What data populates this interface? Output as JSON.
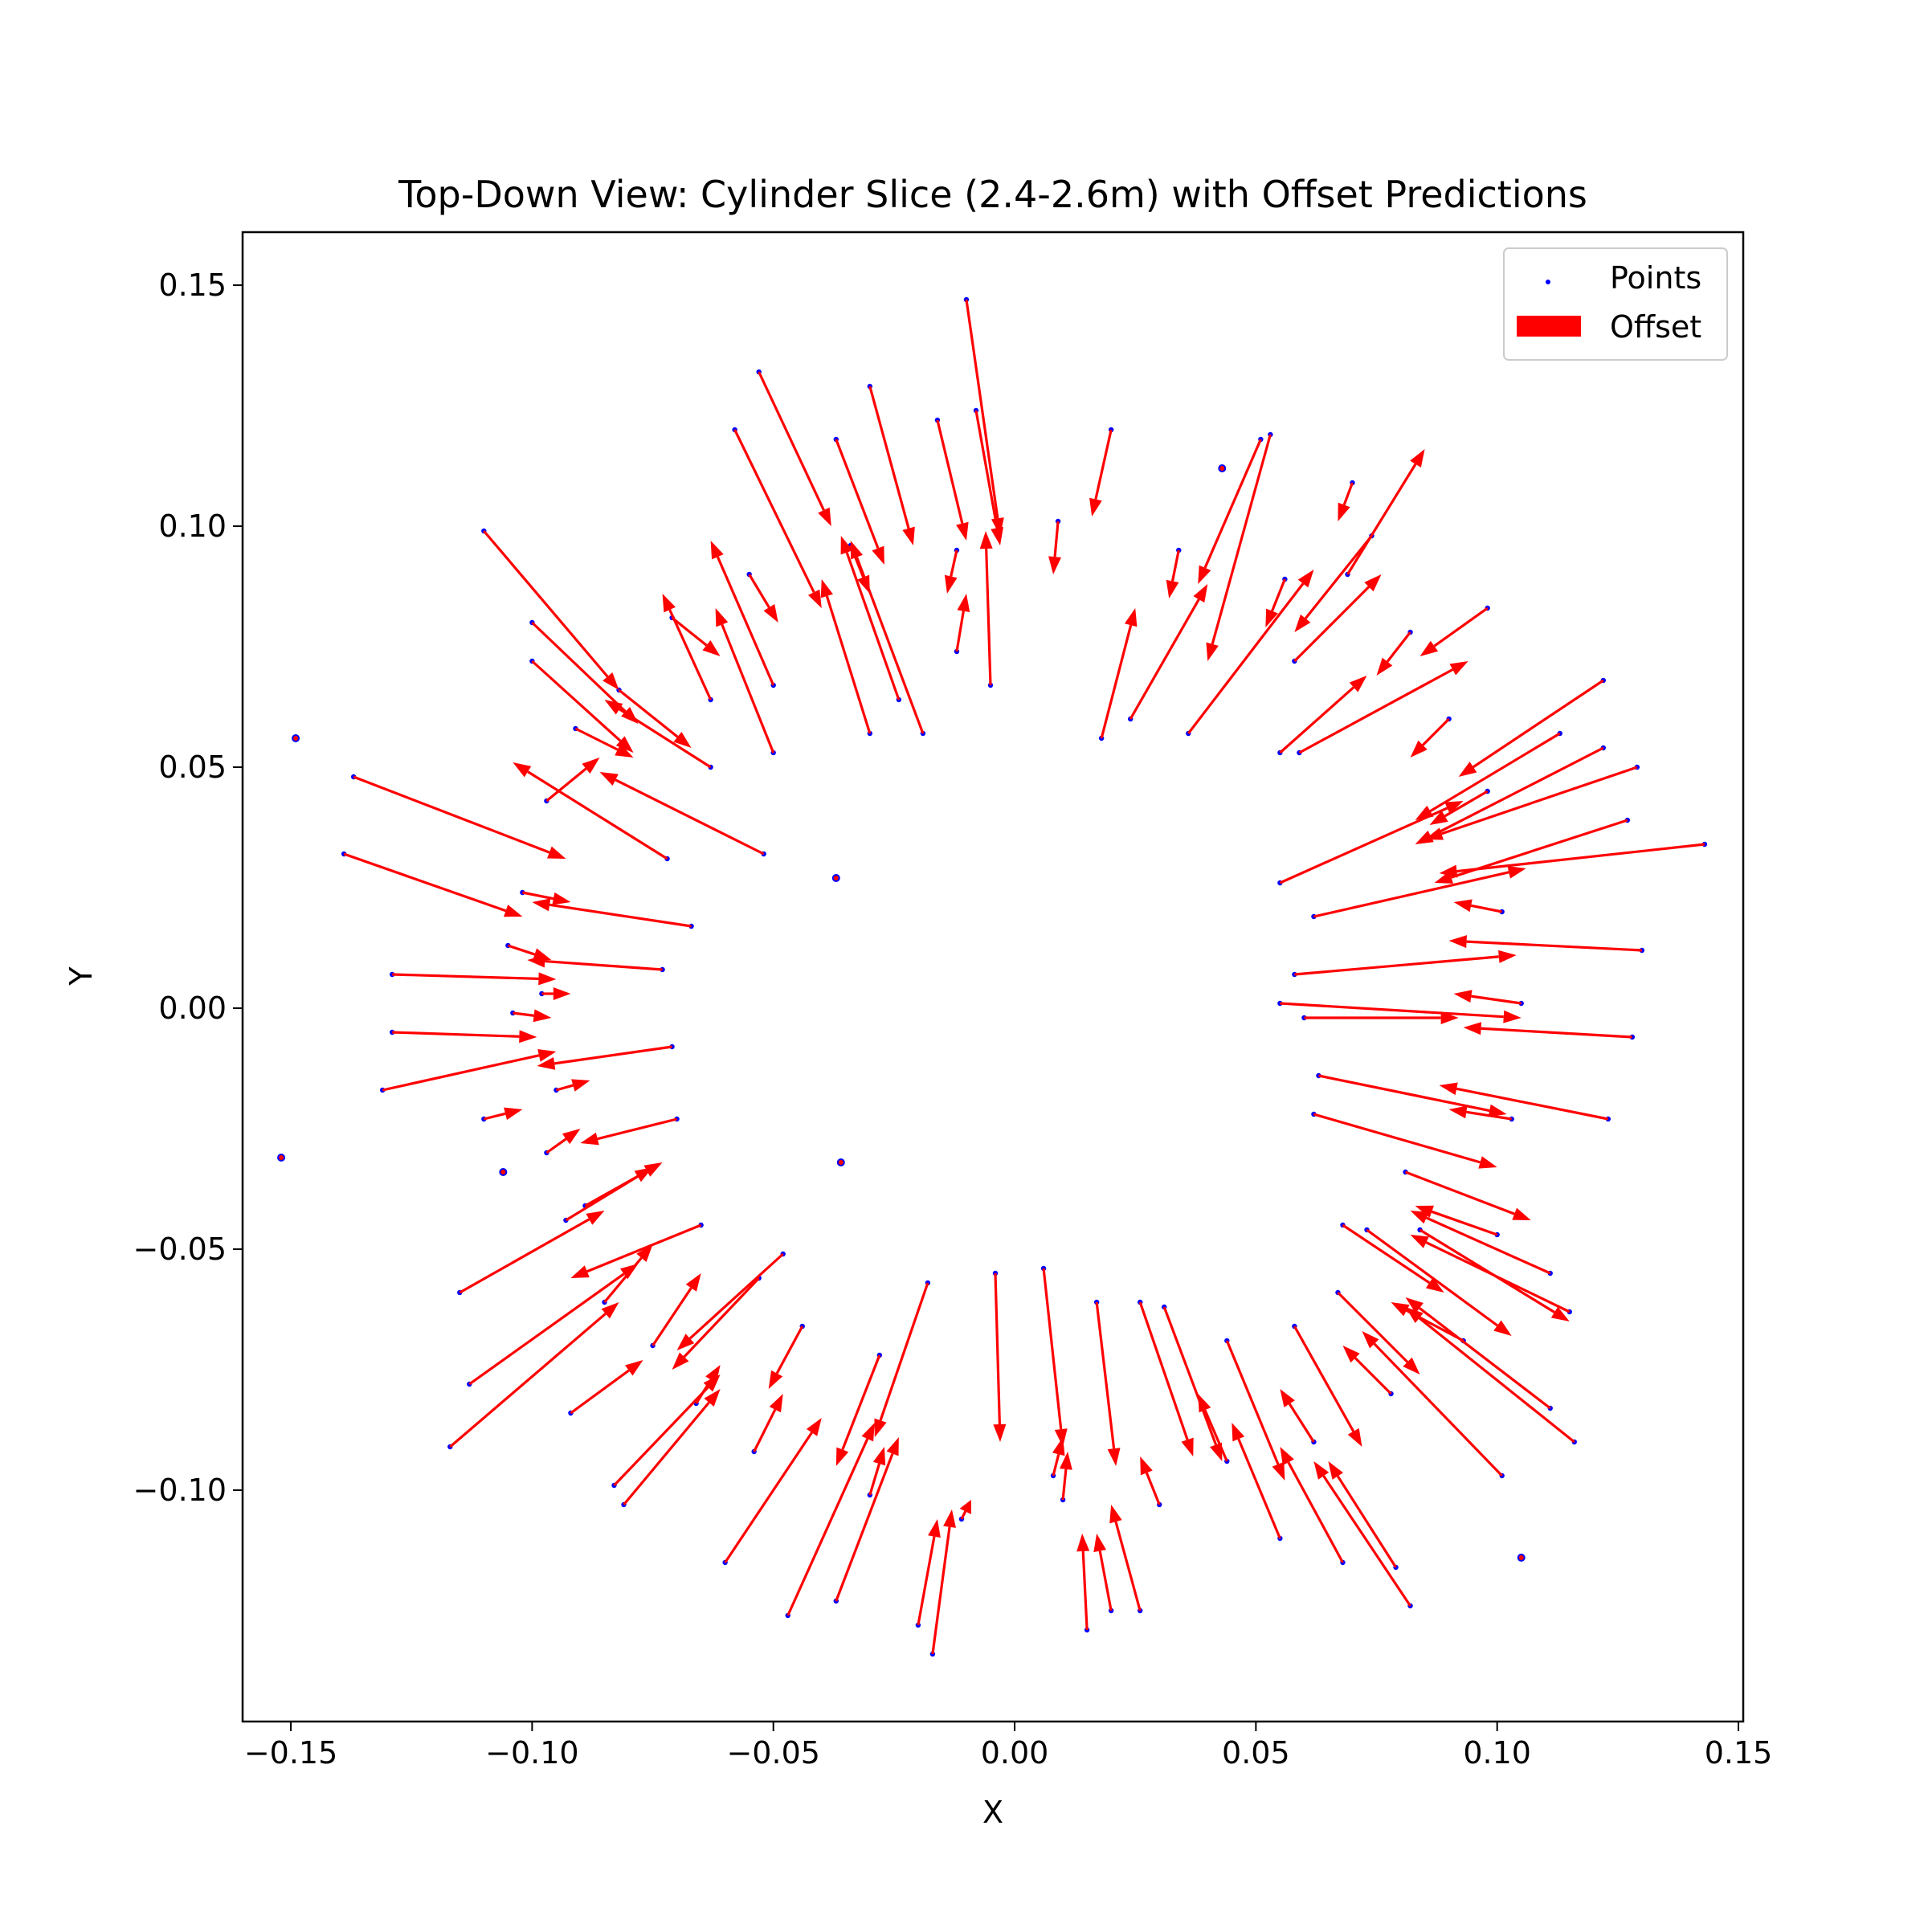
{
  "chart_data": {
    "type": "scatter",
    "title": "Top-Down View: Cylinder Slice (2.4-2.6m) with Offset Predictions",
    "xlabel": "X",
    "ylabel": "Y",
    "xlim": [
      -0.16,
      0.151
    ],
    "ylim": [
      -0.148,
      0.161
    ],
    "x_ticks": [
      -0.15,
      -0.1,
      -0.05,
      0.0,
      0.05,
      0.1,
      0.15
    ],
    "x_tick_labels": [
      "−0.15",
      "−0.10",
      "−0.05",
      "0.00",
      "0.05",
      "0.10",
      "0.15"
    ],
    "y_ticks": [
      0.15,
      0.1,
      0.05,
      0.0,
      -0.05,
      -0.1
    ],
    "y_tick_labels": [
      "0.15",
      "0.10",
      "0.05",
      "0.00",
      "−0.05",
      "−0.10"
    ],
    "grid": false,
    "legend": {
      "position": "upper right",
      "entries": [
        {
          "label": "Points",
          "marker": "dot",
          "color": "#0000ff"
        },
        {
          "label": "Offset",
          "marker": "patch",
          "color": "#ff0000"
        }
      ]
    },
    "colors": {
      "points": "#0000ff",
      "offset": "#ff0000"
    },
    "series": [
      {
        "name": "Offset",
        "kind": "quiver",
        "columns": [
          "x",
          "y",
          "dx",
          "dy"
        ],
        "values": [
          [
            -0.01,
            0.147,
            0.007,
            -0.049
          ],
          [
            -0.008,
            0.124,
            0.005,
            -0.028
          ],
          [
            -0.053,
            0.132,
            0.015,
            -0.032
          ],
          [
            -0.058,
            0.12,
            0.018,
            -0.037
          ],
          [
            -0.037,
            0.118,
            0.01,
            -0.026
          ],
          [
            -0.03,
            0.129,
            0.009,
            -0.033
          ],
          [
            -0.016,
            0.122,
            0.006,
            -0.025
          ],
          [
            -0.11,
            0.099,
            0.028,
            -0.033
          ],
          [
            -0.1,
            0.08,
            0.022,
            -0.021
          ],
          [
            -0.1,
            0.072,
            0.021,
            -0.019
          ],
          [
            -0.137,
            0.048,
            0.044,
            -0.017
          ],
          [
            -0.139,
            0.032,
            0.037,
            -0.013
          ],
          [
            -0.129,
            0.007,
            0.034,
            -0.001
          ],
          [
            -0.129,
            -0.005,
            0.03,
            -0.001
          ],
          [
            -0.131,
            -0.017,
            0.036,
            0.008
          ],
          [
            -0.11,
            -0.023,
            0.008,
            0.002
          ],
          [
            -0.115,
            -0.059,
            0.03,
            0.017
          ],
          [
            -0.113,
            -0.078,
            0.035,
            0.025
          ],
          [
            -0.117,
            -0.091,
            0.035,
            0.03
          ],
          [
            -0.092,
            -0.084,
            0.015,
            0.011
          ],
          [
            -0.083,
            -0.099,
            0.022,
            0.023
          ],
          [
            -0.081,
            -0.103,
            0.02,
            0.024
          ],
          [
            -0.06,
            -0.115,
            0.02,
            0.03
          ],
          [
            -0.047,
            -0.126,
            0.018,
            0.04
          ],
          [
            -0.037,
            -0.123,
            0.013,
            0.034
          ],
          [
            -0.017,
            -0.134,
            0.004,
            0.03
          ],
          [
            -0.02,
            -0.128,
            0.004,
            0.022
          ],
          [
            0.015,
            -0.129,
            -0.001,
            0.02
          ],
          [
            0.02,
            -0.125,
            -0.003,
            0.016
          ],
          [
            0.026,
            -0.125,
            -0.006,
            0.022
          ],
          [
            0.055,
            -0.11,
            -0.01,
            0.024
          ],
          [
            0.068,
            -0.115,
            -0.013,
            0.024
          ],
          [
            0.079,
            -0.116,
            -0.014,
            0.022
          ],
          [
            0.082,
            -0.124,
            -0.02,
            0.03
          ],
          [
            0.101,
            -0.097,
            -0.029,
            0.03
          ],
          [
            0.111,
            -0.083,
            -0.03,
            0.023
          ],
          [
            0.116,
            -0.09,
            -0.035,
            0.028
          ],
          [
            0.115,
            -0.063,
            -0.033,
            0.016
          ],
          [
            0.111,
            -0.055,
            -0.029,
            0.013
          ],
          [
            0.123,
            -0.023,
            -0.035,
            0.007
          ],
          [
            0.128,
            -0.006,
            -0.035,
            0.002
          ],
          [
            0.13,
            0.012,
            -0.04,
            0.002
          ],
          [
            0.143,
            0.034,
            -0.055,
            -0.006
          ],
          [
            0.129,
            0.05,
            -0.044,
            -0.015
          ],
          [
            0.127,
            0.039,
            -0.04,
            -0.013
          ],
          [
            0.122,
            0.054,
            -0.039,
            -0.02
          ],
          [
            0.122,
            0.068,
            -0.03,
            -0.02
          ],
          [
            0.113,
            0.057,
            -0.03,
            -0.018
          ],
          [
            0.098,
            0.083,
            -0.014,
            -0.01
          ],
          [
            0.074,
            0.098,
            -0.016,
            -0.02
          ],
          [
            0.07,
            0.109,
            -0.003,
            -0.008
          ],
          [
            0.053,
            0.119,
            -0.013,
            -0.047
          ],
          [
            0.051,
            0.118,
            -0.013,
            -0.03
          ],
          [
            0.02,
            0.12,
            -0.004,
            -0.018
          ],
          [
            0.018,
            0.056,
            0.007,
            0.027
          ],
          [
            -0.005,
            0.067,
            -0.001,
            0.032
          ],
          [
            -0.019,
            0.057,
            -0.015,
            0.04
          ],
          [
            -0.024,
            0.064,
            -0.012,
            0.034
          ],
          [
            -0.03,
            0.057,
            -0.01,
            0.032
          ],
          [
            -0.05,
            0.053,
            -0.012,
            0.03
          ],
          [
            -0.05,
            0.067,
            -0.013,
            0.03
          ],
          [
            -0.063,
            0.064,
            -0.01,
            0.022
          ],
          [
            -0.063,
            0.05,
            -0.022,
            0.014
          ],
          [
            -0.072,
            0.031,
            -0.032,
            0.02
          ],
          [
            -0.052,
            0.032,
            -0.034,
            0.017
          ],
          [
            -0.067,
            0.017,
            -0.033,
            0.005
          ],
          [
            -0.073,
            0.008,
            -0.028,
            0.002
          ],
          [
            -0.071,
            -0.008,
            -0.028,
            -0.004
          ],
          [
            -0.07,
            -0.023,
            -0.02,
            -0.005
          ],
          [
            -0.065,
            -0.045,
            -0.027,
            -0.011
          ],
          [
            -0.048,
            -0.051,
            -0.022,
            -0.02
          ],
          [
            -0.053,
            -0.056,
            -0.018,
            -0.019
          ],
          [
            -0.044,
            -0.066,
            -0.007,
            -0.013
          ],
          [
            -0.028,
            -0.072,
            -0.009,
            -0.023
          ],
          [
            -0.018,
            -0.057,
            -0.011,
            -0.032
          ],
          [
            -0.004,
            -0.055,
            0.001,
            -0.035
          ],
          [
            0.006,
            -0.054,
            0.004,
            -0.037
          ],
          [
            0.017,
            -0.061,
            0.004,
            -0.034
          ],
          [
            0.026,
            -0.061,
            0.011,
            -0.032
          ],
          [
            0.031,
            -0.062,
            0.012,
            -0.032
          ],
          [
            0.044,
            -0.069,
            0.012,
            -0.029
          ],
          [
            0.058,
            -0.066,
            0.014,
            -0.025
          ],
          [
            0.067,
            -0.059,
            0.017,
            -0.017
          ],
          [
            0.068,
            -0.045,
            0.021,
            -0.014
          ],
          [
            0.073,
            -0.046,
            0.03,
            -0.022
          ],
          [
            0.084,
            -0.046,
            0.031,
            -0.019
          ],
          [
            0.081,
            -0.034,
            0.026,
            -0.01
          ],
          [
            0.062,
            -0.022,
            0.038,
            -0.011
          ],
          [
            0.063,
            -0.014,
            0.039,
            -0.008
          ],
          [
            0.06,
            -0.002,
            0.032,
            0.0
          ],
          [
            0.055,
            0.001,
            0.05,
            -0.003
          ],
          [
            0.058,
            0.007,
            0.046,
            0.004
          ],
          [
            0.062,
            0.019,
            0.044,
            0.01
          ],
          [
            0.055,
            0.026,
            0.038,
            0.017
          ],
          [
            0.059,
            0.053,
            0.035,
            0.019
          ],
          [
            0.055,
            0.053,
            0.018,
            0.016
          ],
          [
            0.069,
            0.09,
            0.016,
            0.026
          ],
          [
            0.058,
            0.072,
            0.018,
            0.018
          ],
          [
            0.036,
            0.057,
            0.026,
            0.034
          ],
          [
            0.024,
            0.06,
            0.016,
            0.028
          ],
          [
            -0.082,
            0.066,
            0.015,
            -0.012
          ],
          [
            -0.097,
            0.043,
            0.011,
            0.009
          ],
          [
            -0.102,
            0.024,
            0.01,
            -0.002
          ],
          [
            -0.105,
            0.013,
            0.009,
            -0.003
          ],
          [
            -0.104,
            -0.001,
            0.008,
            -0.001
          ],
          [
            -0.097,
            -0.03,
            0.007,
            0.005
          ],
          [
            -0.093,
            -0.044,
            0.018,
            0.011
          ],
          [
            -0.089,
            -0.041,
            0.016,
            0.009
          ],
          [
            -0.085,
            -0.061,
            0.01,
            0.012
          ],
          [
            -0.075,
            -0.07,
            0.01,
            0.015
          ],
          [
            -0.066,
            -0.082,
            0.005,
            0.008
          ],
          [
            -0.054,
            -0.092,
            0.006,
            0.012
          ],
          [
            -0.03,
            -0.101,
            0.003,
            0.01
          ],
          [
            -0.011,
            -0.106,
            0.002,
            0.004
          ],
          [
            0.008,
            -0.097,
            0.002,
            0.008
          ],
          [
            0.01,
            -0.102,
            0.001,
            0.01
          ],
          [
            0.03,
            -0.103,
            -0.004,
            0.01
          ],
          [
            0.044,
            -0.094,
            -0.006,
            0.014
          ],
          [
            0.062,
            -0.09,
            -0.007,
            0.011
          ],
          [
            0.078,
            -0.08,
            -0.01,
            0.01
          ],
          [
            0.093,
            -0.069,
            -0.015,
            0.008
          ],
          [
            0.1,
            -0.047,
            -0.017,
            0.006
          ],
          [
            0.103,
            -0.023,
            -0.013,
            0.002
          ],
          [
            0.105,
            0.001,
            -0.014,
            0.002
          ],
          [
            0.101,
            0.02,
            -0.01,
            0.002
          ],
          [
            0.098,
            0.045,
            -0.012,
            -0.007
          ],
          [
            0.09,
            0.06,
            -0.008,
            -0.008
          ],
          [
            0.082,
            0.078,
            -0.007,
            -0.009
          ],
          [
            0.056,
            0.089,
            -0.004,
            -0.01
          ],
          [
            0.034,
            0.095,
            -0.002,
            -0.01
          ],
          [
            0.009,
            0.101,
            -0.001,
            -0.011
          ],
          [
            -0.012,
            0.095,
            -0.002,
            -0.009
          ],
          [
            -0.034,
            0.096,
            0.004,
            -0.01
          ],
          [
            -0.055,
            0.09,
            0.006,
            -0.01
          ],
          [
            -0.071,
            0.081,
            0.01,
            -0.008
          ],
          [
            -0.091,
            0.058,
            0.012,
            -0.006
          ],
          [
            -0.098,
            0.003,
            0.006,
            0.0
          ],
          [
            -0.095,
            -0.017,
            0.007,
            0.002
          ],
          [
            -0.012,
            0.074,
            0.002,
            0.012
          ]
        ]
      },
      {
        "name": "Points",
        "kind": "scatter",
        "columns": [
          "x",
          "y"
        ],
        "values": [
          [
            -0.149,
            0.056
          ],
          [
            -0.152,
            -0.031
          ],
          [
            -0.037,
            0.027
          ],
          [
            -0.036,
            -0.032
          ],
          [
            0.105,
            -0.114
          ],
          [
            -0.106,
            -0.034
          ],
          [
            0.043,
            0.112
          ]
        ]
      }
    ]
  }
}
